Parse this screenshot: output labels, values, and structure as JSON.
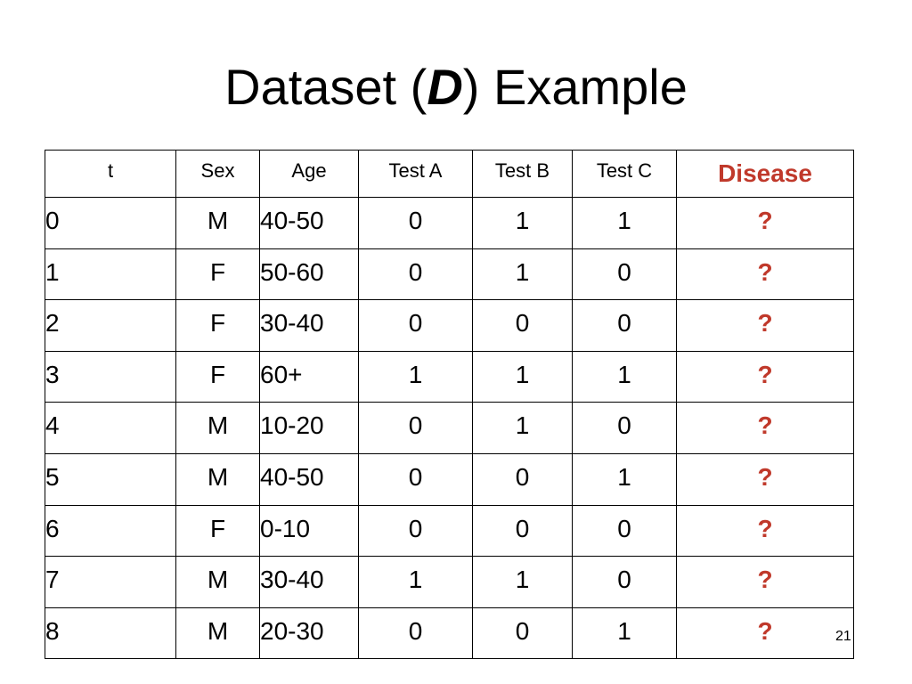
{
  "title": {
    "prefix": "Dataset (",
    "variable": "D",
    "suffix": ") Example"
  },
  "table": {
    "headers": [
      "t",
      "Sex",
      "Age",
      "Test A",
      "Test B",
      "Test C",
      "Disease"
    ],
    "rows": [
      [
        "0",
        "M",
        "40-50",
        "0",
        "1",
        "1",
        "?"
      ],
      [
        "1",
        "F",
        "50-60",
        "0",
        "1",
        "0",
        "?"
      ],
      [
        "2",
        "F",
        "30-40",
        "0",
        "0",
        "0",
        "?"
      ],
      [
        "3",
        "F",
        "60+",
        "1",
        "1",
        "1",
        "?"
      ],
      [
        "4",
        "M",
        "10-20",
        "0",
        "1",
        "0",
        "?"
      ],
      [
        "5",
        "M",
        "40-50",
        "0",
        "0",
        "1",
        "?"
      ],
      [
        "6",
        "F",
        "0-10",
        "0",
        "0",
        "0",
        "?"
      ],
      [
        "7",
        "M",
        "30-40",
        "1",
        "1",
        "0",
        "?"
      ],
      [
        "8",
        "M",
        "20-30",
        "0",
        "0",
        "1",
        "?"
      ]
    ]
  },
  "slide_number": "21",
  "colors": {
    "accent": "#c0392b",
    "text": "#000000",
    "background": "#ffffff"
  }
}
